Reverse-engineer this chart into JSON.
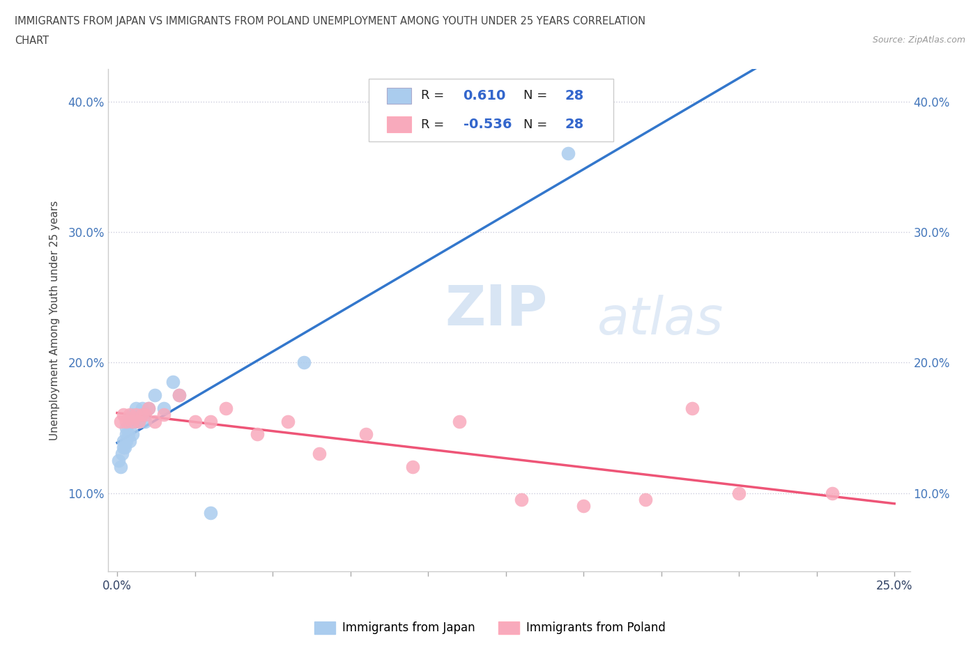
{
  "title_line1": "IMMIGRANTS FROM JAPAN VS IMMIGRANTS FROM POLAND UNEMPLOYMENT AMONG YOUTH UNDER 25 YEARS CORRELATION",
  "title_line2": "CHART",
  "source_text": "Source: ZipAtlas.com",
  "ylabel": "Unemployment Among Youth under 25 years",
  "xlim": [
    -0.003,
    0.255
  ],
  "ylim": [
    0.04,
    0.425
  ],
  "xticks": [
    0.0,
    0.025,
    0.05,
    0.075,
    0.1,
    0.125,
    0.15,
    0.175,
    0.2,
    0.225,
    0.25
  ],
  "xtick_labels_show": [
    true,
    false,
    false,
    false,
    false,
    false,
    false,
    false,
    false,
    false,
    true
  ],
  "yticks": [
    0.1,
    0.2,
    0.3,
    0.4
  ],
  "watermark_zip": "ZIP",
  "watermark_atlas": "atlas",
  "R_japan": 0.61,
  "R_poland": -0.536,
  "N_japan": 28,
  "N_poland": 28,
  "japan_color": "#aaccee",
  "poland_color": "#f8aabc",
  "japan_line_color": "#3377cc",
  "poland_line_color": "#ee5577",
  "japan_extrap_color": "#bbbbbb",
  "background_color": "#ffffff",
  "japan_x": [
    0.0005,
    0.001,
    0.0015,
    0.002,
    0.002,
    0.0025,
    0.003,
    0.003,
    0.003,
    0.0035,
    0.004,
    0.004,
    0.005,
    0.005,
    0.005,
    0.006,
    0.006,
    0.007,
    0.008,
    0.009,
    0.01,
    0.012,
    0.015,
    0.018,
    0.02,
    0.03,
    0.06,
    0.145
  ],
  "japan_y": [
    0.125,
    0.12,
    0.13,
    0.135,
    0.14,
    0.135,
    0.145,
    0.14,
    0.15,
    0.145,
    0.14,
    0.155,
    0.155,
    0.145,
    0.16,
    0.155,
    0.165,
    0.155,
    0.165,
    0.155,
    0.165,
    0.175,
    0.165,
    0.185,
    0.175,
    0.085,
    0.2,
    0.36
  ],
  "poland_x": [
    0.001,
    0.002,
    0.003,
    0.004,
    0.005,
    0.006,
    0.007,
    0.008,
    0.009,
    0.01,
    0.012,
    0.015,
    0.02,
    0.025,
    0.03,
    0.035,
    0.045,
    0.055,
    0.065,
    0.08,
    0.095,
    0.11,
    0.13,
    0.15,
    0.17,
    0.185,
    0.2,
    0.23
  ],
  "poland_y": [
    0.155,
    0.16,
    0.155,
    0.16,
    0.155,
    0.16,
    0.155,
    0.16,
    0.16,
    0.165,
    0.155,
    0.16,
    0.175,
    0.155,
    0.155,
    0.165,
    0.145,
    0.155,
    0.13,
    0.145,
    0.12,
    0.155,
    0.095,
    0.09,
    0.095,
    0.165,
    0.1,
    0.1
  ],
  "legend_japan_label": "Immigrants from Japan",
  "legend_poland_label": "Immigrants from Poland"
}
